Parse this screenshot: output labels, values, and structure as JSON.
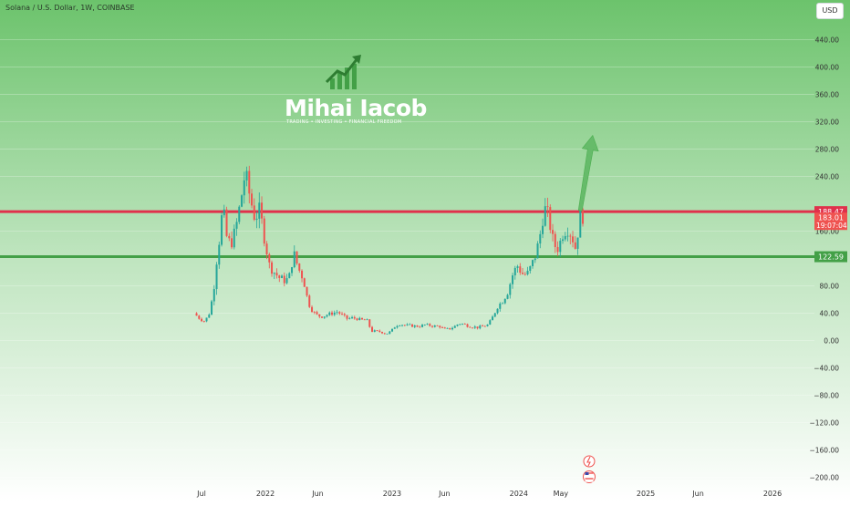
{
  "header": {
    "symbol_title": "Solana / U.S. Dollar, 1W, COINBASE",
    "currency_button": "USD"
  },
  "watermark": {
    "name": "Mihai Iacob",
    "tagline": "TRADING • INVESTING • FINANCIAL FREEDOM"
  },
  "colors": {
    "up": "#26a69a",
    "down": "#ef5350",
    "resistance": "#e0314b",
    "support": "#43a047",
    "arrow": "#66bb6a",
    "background_top": "#6cc36c",
    "background_bottom": "#ffffff"
  },
  "chart_data": {
    "type": "candlestick",
    "title": "Solana / U.S. Dollar, 1W, COINBASE",
    "y_axis": {
      "range": [
        -205,
        470
      ],
      "ticks": [
        440,
        400,
        360,
        320,
        280,
        240,
        160,
        80,
        40,
        0,
        -40,
        -80,
        -120,
        -160,
        -200
      ],
      "tick_labels": [
        "440.00",
        "400.00",
        "360.00",
        "320.00",
        "280.00",
        "240.00",
        "160.00",
        "80.00",
        "40.00",
        "0.00",
        "−40.00",
        "−80.00",
        "−120.00",
        "−160.00",
        "−200.00"
      ]
    },
    "x_axis": {
      "tick_labels": [
        "Jul",
        "2022",
        "Jun",
        "2023",
        "Jun",
        "2024",
        "May",
        "2025",
        "Jun",
        "2026"
      ],
      "tick_dates": [
        "2021-07-01",
        "2022-01-01",
        "2022-06-01",
        "2023-01-01",
        "2023-06-01",
        "2024-01-01",
        "2024-05-01",
        "2025-01-01",
        "2025-06-01",
        "2026-01-01"
      ]
    },
    "horizontal_levels": [
      {
        "value": 188.47,
        "label": "188.47",
        "role": "resistance"
      },
      {
        "value": 122.59,
        "label": "122.59",
        "role": "support"
      }
    ],
    "last_price": {
      "value": 183.01,
      "label": "183.01",
      "countdown": "19:07:04"
    },
    "projection_arrow": {
      "from": {
        "date": "2024-06-26",
        "price": 190
      },
      "to": {
        "date": "2024-08-01",
        "price": 300
      }
    },
    "price_path": [
      [
        "2021-06-14",
        40
      ],
      [
        "2021-06-28",
        33
      ],
      [
        "2021-07-12",
        28
      ],
      [
        "2021-07-26",
        36
      ],
      [
        "2021-08-09",
        70
      ],
      [
        "2021-08-16",
        110
      ],
      [
        "2021-08-23",
        135
      ],
      [
        "2021-08-30",
        170
      ],
      [
        "2021-09-06",
        195
      ],
      [
        "2021-09-13",
        155
      ],
      [
        "2021-09-27",
        140
      ],
      [
        "2021-10-11",
        160
      ],
      [
        "2021-10-25",
        200
      ],
      [
        "2021-11-08",
        245
      ],
      [
        "2021-11-22",
        210
      ],
      [
        "2021-12-06",
        180
      ],
      [
        "2021-12-20",
        190
      ],
      [
        "2022-01-03",
        150
      ],
      [
        "2022-01-17",
        110
      ],
      [
        "2022-01-31",
        100
      ],
      [
        "2022-02-14",
        92
      ],
      [
        "2022-02-28",
        88
      ],
      [
        "2022-03-14",
        90
      ],
      [
        "2022-03-28",
        128
      ],
      [
        "2022-04-11",
        105
      ],
      [
        "2022-04-25",
        90
      ],
      [
        "2022-05-09",
        55
      ],
      [
        "2022-05-23",
        42
      ],
      [
        "2022-06-06",
        36
      ],
      [
        "2022-06-20",
        35
      ],
      [
        "2022-07-04",
        38
      ],
      [
        "2022-07-18",
        40
      ],
      [
        "2022-08-01",
        42
      ],
      [
        "2022-08-15",
        37
      ],
      [
        "2022-08-29",
        32
      ],
      [
        "2022-09-12",
        33
      ],
      [
        "2022-09-26",
        32
      ],
      [
        "2022-10-10",
        30
      ],
      [
        "2022-10-24",
        31
      ],
      [
        "2022-11-07",
        14
      ],
      [
        "2022-11-21",
        13
      ],
      [
        "2022-12-05",
        13
      ],
      [
        "2022-12-19",
        10
      ],
      [
        "2023-01-02",
        13
      ],
      [
        "2023-01-16",
        22
      ],
      [
        "2023-01-30",
        24
      ],
      [
        "2023-02-13",
        22
      ],
      [
        "2023-02-27",
        22
      ],
      [
        "2023-03-13",
        21
      ],
      [
        "2023-03-27",
        21
      ],
      [
        "2023-04-10",
        23
      ],
      [
        "2023-04-24",
        22
      ],
      [
        "2023-05-08",
        21
      ],
      [
        "2023-05-22",
        21
      ],
      [
        "2023-06-05",
        16
      ],
      [
        "2023-06-19",
        17
      ],
      [
        "2023-07-03",
        20
      ],
      [
        "2023-07-17",
        25
      ],
      [
        "2023-07-31",
        24
      ],
      [
        "2023-08-14",
        21
      ],
      [
        "2023-08-28",
        20
      ],
      [
        "2023-09-11",
        19
      ],
      [
        "2023-09-25",
        21
      ],
      [
        "2023-10-09",
        23
      ],
      [
        "2023-10-23",
        35
      ],
      [
        "2023-11-06",
        50
      ],
      [
        "2023-11-20",
        58
      ],
      [
        "2023-12-04",
        70
      ],
      [
        "2023-12-18",
        95
      ],
      [
        "2024-01-01",
        110
      ],
      [
        "2024-01-15",
        98
      ],
      [
        "2024-01-29",
        96
      ],
      [
        "2024-02-12",
        110
      ],
      [
        "2024-02-26",
        130
      ],
      [
        "2024-03-11",
        165
      ],
      [
        "2024-03-18",
        195
      ],
      [
        "2024-04-01",
        180
      ],
      [
        "2024-04-15",
        140
      ],
      [
        "2024-04-29",
        135
      ],
      [
        "2024-05-13",
        160
      ],
      [
        "2024-05-27",
        165
      ],
      [
        "2024-06-10",
        148
      ],
      [
        "2024-06-17",
        135
      ],
      [
        "2024-06-24",
        160
      ],
      [
        "2024-07-01",
        183
      ]
    ]
  }
}
